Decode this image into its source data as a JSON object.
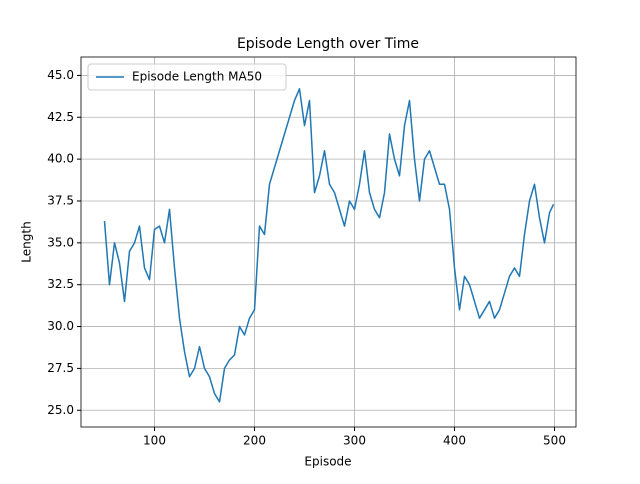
{
  "chart_data": {
    "type": "line",
    "title": "Episode Length over Time",
    "x_label": "Episode",
    "y_label": "Length",
    "x": [
      50,
      55,
      60,
      65,
      70,
      75,
      80,
      85,
      90,
      95,
      100,
      105,
      110,
      115,
      120,
      125,
      130,
      135,
      140,
      145,
      150,
      155,
      160,
      165,
      170,
      175,
      180,
      185,
      190,
      195,
      200,
      205,
      210,
      215,
      220,
      225,
      230,
      235,
      240,
      245,
      250,
      255,
      260,
      265,
      270,
      275,
      280,
      285,
      290,
      295,
      300,
      305,
      310,
      315,
      320,
      325,
      330,
      335,
      340,
      345,
      350,
      355,
      360,
      365,
      370,
      375,
      380,
      385,
      390,
      395,
      400,
      405,
      410,
      415,
      420,
      425,
      430,
      435,
      440,
      445,
      450,
      455,
      460,
      465,
      470,
      475,
      480,
      485,
      490,
      495,
      499
    ],
    "series": [
      {
        "name": "Episode Length MA50",
        "color": "#1f77b4",
        "values": [
          36.3,
          32.5,
          35.0,
          33.8,
          31.5,
          34.5,
          35.0,
          36.0,
          33.5,
          32.8,
          35.8,
          36.0,
          35.0,
          37.0,
          33.5,
          30.5,
          28.5,
          27.0,
          27.5,
          28.8,
          27.5,
          27.0,
          26.0,
          25.5,
          27.5,
          28.0,
          28.3,
          30.0,
          29.5,
          30.5,
          31.0,
          36.0,
          35.5,
          38.5,
          39.5,
          40.5,
          41.5,
          42.5,
          43.5,
          44.2,
          42.0,
          43.5,
          38.0,
          39.0,
          40.5,
          38.5,
          38.0,
          37.0,
          36.0,
          37.5,
          37.0,
          38.5,
          40.5,
          38.0,
          37.0,
          36.5,
          38.0,
          41.5,
          40.0,
          39.0,
          42.0,
          43.5,
          40.0,
          37.5,
          40.0,
          40.5,
          39.5,
          38.5,
          38.5,
          37.0,
          33.5,
          31.0,
          33.0,
          32.5,
          31.5,
          30.5,
          31.0,
          31.5,
          30.5,
          31.0,
          32.0,
          33.0,
          33.5,
          33.0,
          35.5,
          37.5,
          38.5,
          36.5,
          35.0,
          36.8,
          37.3
        ]
      }
    ],
    "xlim": [
      26.5,
      521.5
    ],
    "xticks": [
      100,
      200,
      300,
      400,
      500
    ],
    "ylim": [
      24.0,
      46.1
    ],
    "yticks": [
      {
        "value": 25,
        "label": "25.0"
      },
      {
        "value": 27.5,
        "label": "27.5"
      },
      {
        "value": 30,
        "label": "30.0"
      },
      {
        "value": 32.5,
        "label": "32.5"
      },
      {
        "value": 35,
        "label": "35.0"
      },
      {
        "value": 37.5,
        "label": "37.5"
      },
      {
        "value": 40,
        "label": "40.0"
      },
      {
        "value": 42.5,
        "label": "42.5"
      },
      {
        "value": 45,
        "label": "45.0"
      }
    ],
    "grid": true,
    "legend_position": "upper-left"
  }
}
